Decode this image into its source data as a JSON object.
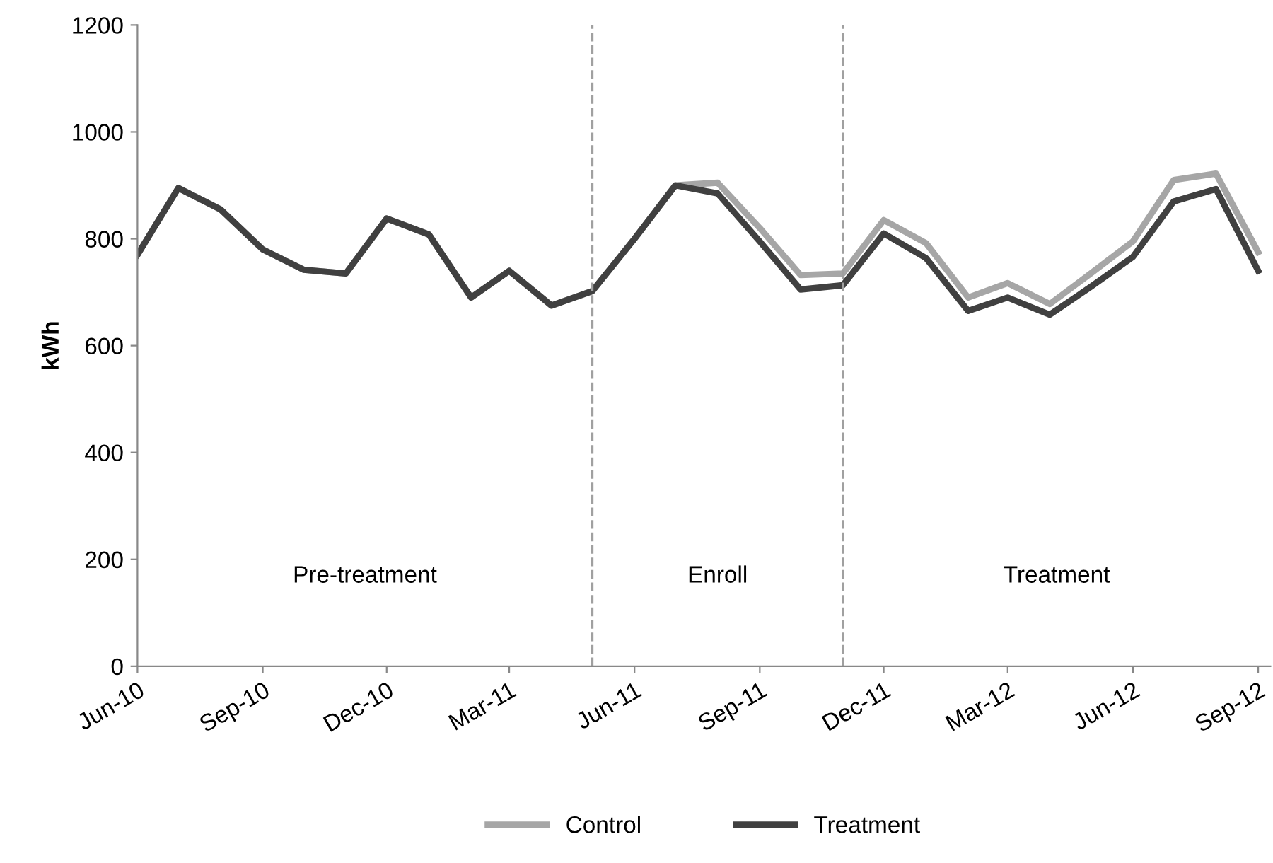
{
  "chart_data": {
    "type": "line",
    "ylabel": "kWh",
    "x": [
      "2010-06",
      "2010-07",
      "2010-08",
      "2010-09",
      "2010-10",
      "2010-11",
      "2010-12",
      "2011-01",
      "2011-02",
      "2011-03",
      "2011-04",
      "2011-05",
      "2011-06",
      "2011-07",
      "2011-08",
      "2011-09",
      "2011-10",
      "2011-11",
      "2011-12",
      "2012-01",
      "2012-02",
      "2012-03",
      "2012-04",
      "2012-05",
      "2012-06",
      "2012-07",
      "2012-08",
      "2012-09"
    ],
    "series": [
      {
        "name": "Control",
        "color": "#a6a6a6",
        "values": [
          770,
          895,
          855,
          780,
          742,
          735,
          838,
          808,
          690,
          740,
          675,
          702,
          800,
          900,
          905,
          820,
          732,
          735,
          835,
          792,
          690,
          717,
          678,
          735,
          795,
          910,
          922,
          775
        ]
      },
      {
        "name": "Treatment",
        "color": "#404040",
        "values": [
          770,
          895,
          855,
          780,
          742,
          735,
          838,
          808,
          690,
          740,
          675,
          702,
          800,
          900,
          885,
          795,
          705,
          713,
          810,
          764,
          665,
          690,
          658,
          710,
          766,
          870,
          893,
          740
        ]
      }
    ],
    "xlim": [
      "2010-06-01",
      "2012-09-10"
    ],
    "xticks": [
      {
        "value": "2010-06",
        "label": "Jun-10"
      },
      {
        "value": "2010-09",
        "label": "Sep-10"
      },
      {
        "value": "2010-12",
        "label": "Dec-10"
      },
      {
        "value": "2011-03",
        "label": "Mar-11"
      },
      {
        "value": "2011-06",
        "label": "Jun-11"
      },
      {
        "value": "2011-09",
        "label": "Sep-11"
      },
      {
        "value": "2011-12",
        "label": "Dec-11"
      },
      {
        "value": "2012-03",
        "label": "Mar-12"
      },
      {
        "value": "2012-06",
        "label": "Jun-12"
      },
      {
        "value": "2012-09",
        "label": "Sep-12"
      }
    ],
    "ylim": [
      0,
      1200
    ],
    "yticks": [
      0,
      200,
      400,
      600,
      800,
      1000,
      1200
    ],
    "ref_lines": [
      {
        "axis": "x",
        "value": "2011-05",
        "color": "#a0a0a0",
        "line_style": "dashed"
      },
      {
        "axis": "x",
        "value": "2011-11",
        "color": "#a0a0a0",
        "line_style": "dashed"
      }
    ],
    "annotations": [
      "Pre-treatment",
      "Enroll",
      "Treatment"
    ],
    "grid": false,
    "legend": "bottom",
    "marker": "none",
    "line_style": "solid"
  }
}
